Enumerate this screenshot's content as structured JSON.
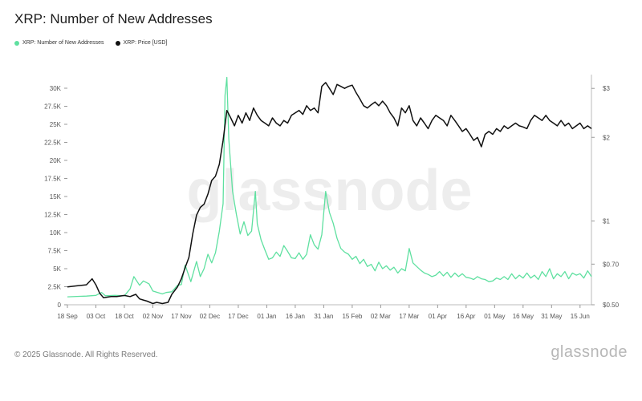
{
  "page": {
    "title": "XRP: Number of New Addresses",
    "footer": "© 2025 Glassnode. All Rights Reserved.",
    "brand": "glassnode",
    "watermark": "glassnode"
  },
  "chart_data": {
    "type": "line",
    "title": "XRP: Number of New Addresses",
    "legend_position": "top-left",
    "grid": false,
    "x_ticks": [
      "18 Sep",
      "03 Oct",
      "18 Oct",
      "02 Nov",
      "17 Nov",
      "02 Dec",
      "17 Dec",
      "01 Jan",
      "16 Jan",
      "31 Jan",
      "15 Feb",
      "02 Mar",
      "17 Mar",
      "01 Apr",
      "16 Apr",
      "01 May",
      "16 May",
      "31 May",
      "15 Jun"
    ],
    "x_range": [
      0,
      276
    ],
    "y_left": {
      "ticks": [
        "0",
        "2.5K",
        "5K",
        "7.5K",
        "10K",
        "12.5K",
        "15K",
        "17.5K",
        "20K",
        "22.5K",
        "25K",
        "27.5K",
        "30K"
      ],
      "range": [
        0,
        30000
      ]
    },
    "y_right": {
      "ticks": [
        "$0.50",
        "$0.70",
        "$1",
        "$2",
        "$3"
      ],
      "scale": "log",
      "range": [
        0.5,
        3.5
      ]
    },
    "series": [
      {
        "name": "XRP: Number of New Addresses",
        "axis": "left",
        "color": "#5fe0a0",
        "points": [
          [
            0,
            1100
          ],
          [
            5,
            1150
          ],
          [
            10,
            1200
          ],
          [
            15,
            1300
          ],
          [
            18,
            1700
          ],
          [
            20,
            1250
          ],
          [
            25,
            1300
          ],
          [
            30,
            1250
          ],
          [
            33,
            2200
          ],
          [
            35,
            3900
          ],
          [
            38,
            2700
          ],
          [
            40,
            3300
          ],
          [
            43,
            2900
          ],
          [
            45,
            1900
          ],
          [
            50,
            1500
          ],
          [
            52,
            1700
          ],
          [
            55,
            1800
          ],
          [
            58,
            2700
          ],
          [
            60,
            2800
          ],
          [
            62,
            5500
          ],
          [
            65,
            3200
          ],
          [
            68,
            6000
          ],
          [
            70,
            3900
          ],
          [
            72,
            5000
          ],
          [
            74,
            7000
          ],
          [
            76,
            5800
          ],
          [
            78,
            7200
          ],
          [
            80,
            10200
          ],
          [
            82,
            14000
          ],
          [
            83,
            29000
          ],
          [
            84,
            31500
          ],
          [
            85,
            23000
          ],
          [
            87,
            15700
          ],
          [
            89,
            12500
          ],
          [
            91,
            9800
          ],
          [
            93,
            11500
          ],
          [
            95,
            9600
          ],
          [
            97,
            10200
          ],
          [
            99,
            15700
          ],
          [
            100,
            11200
          ],
          [
            102,
            9000
          ],
          [
            104,
            7600
          ],
          [
            106,
            6300
          ],
          [
            108,
            6500
          ],
          [
            110,
            7300
          ],
          [
            112,
            6700
          ],
          [
            114,
            8200
          ],
          [
            116,
            7400
          ],
          [
            118,
            6500
          ],
          [
            120,
            6400
          ],
          [
            122,
            7200
          ],
          [
            124,
            6300
          ],
          [
            126,
            7000
          ],
          [
            128,
            9700
          ],
          [
            130,
            8300
          ],
          [
            132,
            7700
          ],
          [
            134,
            9700
          ],
          [
            136,
            15700
          ],
          [
            138,
            12800
          ],
          [
            140,
            11300
          ],
          [
            142,
            9200
          ],
          [
            144,
            7800
          ],
          [
            146,
            7300
          ],
          [
            148,
            7000
          ],
          [
            150,
            6300
          ],
          [
            152,
            6700
          ],
          [
            154,
            5700
          ],
          [
            156,
            6300
          ],
          [
            158,
            5300
          ],
          [
            160,
            5600
          ],
          [
            162,
            4700
          ],
          [
            164,
            5900
          ],
          [
            166,
            5000
          ],
          [
            168,
            5400
          ],
          [
            170,
            4800
          ],
          [
            172,
            5200
          ],
          [
            174,
            4400
          ],
          [
            176,
            5000
          ],
          [
            178,
            4700
          ],
          [
            180,
            7800
          ],
          [
            182,
            5800
          ],
          [
            184,
            5300
          ],
          [
            186,
            4800
          ],
          [
            188,
            4400
          ],
          [
            190,
            4200
          ],
          [
            192,
            3900
          ],
          [
            194,
            4100
          ],
          [
            196,
            4600
          ],
          [
            198,
            4000
          ],
          [
            200,
            4500
          ],
          [
            202,
            3800
          ],
          [
            204,
            4400
          ],
          [
            206,
            3900
          ],
          [
            208,
            4300
          ],
          [
            210,
            3800
          ],
          [
            212,
            3700
          ],
          [
            214,
            3500
          ],
          [
            216,
            3900
          ],
          [
            218,
            3600
          ],
          [
            220,
            3500
          ],
          [
            222,
            3200
          ],
          [
            224,
            3300
          ],
          [
            226,
            3700
          ],
          [
            228,
            3500
          ],
          [
            230,
            3900
          ],
          [
            232,
            3500
          ],
          [
            234,
            4300
          ],
          [
            236,
            3600
          ],
          [
            238,
            4100
          ],
          [
            240,
            3700
          ],
          [
            242,
            4400
          ],
          [
            244,
            3700
          ],
          [
            246,
            4100
          ],
          [
            248,
            3500
          ],
          [
            250,
            4600
          ],
          [
            252,
            3900
          ],
          [
            254,
            5000
          ],
          [
            256,
            3600
          ],
          [
            258,
            4300
          ],
          [
            260,
            3900
          ],
          [
            262,
            4600
          ],
          [
            264,
            3600
          ],
          [
            266,
            4400
          ],
          [
            268,
            4100
          ],
          [
            270,
            4300
          ],
          [
            272,
            3700
          ],
          [
            274,
            4700
          ],
          [
            276,
            3900
          ]
        ]
      },
      {
        "name": "XRP: Price [USD]",
        "axis": "right",
        "color": "#111111",
        "points": [
          [
            0,
            0.58
          ],
          [
            5,
            0.585
          ],
          [
            10,
            0.59
          ],
          [
            13,
            0.62
          ],
          [
            15,
            0.59
          ],
          [
            17,
            0.55
          ],
          [
            19,
            0.53
          ],
          [
            23,
            0.535
          ],
          [
            26,
            0.535
          ],
          [
            30,
            0.54
          ],
          [
            33,
            0.535
          ],
          [
            36,
            0.545
          ],
          [
            38,
            0.525
          ],
          [
            40,
            0.52
          ],
          [
            42,
            0.515
          ],
          [
            45,
            0.505
          ],
          [
            47,
            0.51
          ],
          [
            50,
            0.505
          ],
          [
            53,
            0.51
          ],
          [
            55,
            0.545
          ],
          [
            58,
            0.58
          ],
          [
            60,
            0.62
          ],
          [
            62,
            0.68
          ],
          [
            64,
            0.74
          ],
          [
            66,
            0.9
          ],
          [
            68,
            1.05
          ],
          [
            70,
            1.12
          ],
          [
            72,
            1.15
          ],
          [
            74,
            1.25
          ],
          [
            76,
            1.4
          ],
          [
            78,
            1.45
          ],
          [
            80,
            1.6
          ],
          [
            82,
            1.95
          ],
          [
            84,
            2.5
          ],
          [
            86,
            2.35
          ],
          [
            88,
            2.2
          ],
          [
            90,
            2.4
          ],
          [
            92,
            2.25
          ],
          [
            94,
            2.45
          ],
          [
            96,
            2.3
          ],
          [
            98,
            2.55
          ],
          [
            100,
            2.4
          ],
          [
            102,
            2.3
          ],
          [
            104,
            2.25
          ],
          [
            106,
            2.2
          ],
          [
            108,
            2.35
          ],
          [
            110,
            2.25
          ],
          [
            112,
            2.2
          ],
          [
            114,
            2.3
          ],
          [
            116,
            2.25
          ],
          [
            118,
            2.4
          ],
          [
            120,
            2.45
          ],
          [
            122,
            2.5
          ],
          [
            124,
            2.42
          ],
          [
            126,
            2.6
          ],
          [
            128,
            2.5
          ],
          [
            130,
            2.55
          ],
          [
            132,
            2.45
          ],
          [
            134,
            3.05
          ],
          [
            136,
            3.15
          ],
          [
            138,
            3.0
          ],
          [
            140,
            2.85
          ],
          [
            142,
            3.1
          ],
          [
            144,
            3.05
          ],
          [
            146,
            3.0
          ],
          [
            148,
            3.05
          ],
          [
            150,
            3.08
          ],
          [
            152,
            2.9
          ],
          [
            154,
            2.75
          ],
          [
            156,
            2.6
          ],
          [
            158,
            2.55
          ],
          [
            160,
            2.62
          ],
          [
            162,
            2.68
          ],
          [
            164,
            2.6
          ],
          [
            166,
            2.7
          ],
          [
            168,
            2.6
          ],
          [
            170,
            2.45
          ],
          [
            172,
            2.35
          ],
          [
            174,
            2.2
          ],
          [
            176,
            2.55
          ],
          [
            178,
            2.45
          ],
          [
            180,
            2.6
          ],
          [
            182,
            2.3
          ],
          [
            184,
            2.2
          ],
          [
            186,
            2.35
          ],
          [
            188,
            2.25
          ],
          [
            190,
            2.15
          ],
          [
            192,
            2.3
          ],
          [
            194,
            2.4
          ],
          [
            196,
            2.35
          ],
          [
            198,
            2.3
          ],
          [
            200,
            2.2
          ],
          [
            202,
            2.4
          ],
          [
            204,
            2.3
          ],
          [
            206,
            2.2
          ],
          [
            208,
            2.1
          ],
          [
            210,
            2.15
          ],
          [
            212,
            2.05
          ],
          [
            214,
            1.95
          ],
          [
            216,
            2.0
          ],
          [
            218,
            1.85
          ],
          [
            220,
            2.05
          ],
          [
            222,
            2.1
          ],
          [
            224,
            2.05
          ],
          [
            226,
            2.15
          ],
          [
            228,
            2.1
          ],
          [
            230,
            2.2
          ],
          [
            232,
            2.15
          ],
          [
            234,
            2.2
          ],
          [
            236,
            2.25
          ],
          [
            238,
            2.2
          ],
          [
            240,
            2.18
          ],
          [
            242,
            2.15
          ],
          [
            244,
            2.3
          ],
          [
            246,
            2.4
          ],
          [
            248,
            2.35
          ],
          [
            250,
            2.3
          ],
          [
            252,
            2.4
          ],
          [
            254,
            2.3
          ],
          [
            256,
            2.25
          ],
          [
            258,
            2.2
          ],
          [
            260,
            2.3
          ],
          [
            262,
            2.2
          ],
          [
            264,
            2.25
          ],
          [
            266,
            2.15
          ],
          [
            268,
            2.2
          ],
          [
            270,
            2.25
          ],
          [
            272,
            2.15
          ],
          [
            274,
            2.2
          ],
          [
            276,
            2.15
          ]
        ]
      }
    ]
  }
}
